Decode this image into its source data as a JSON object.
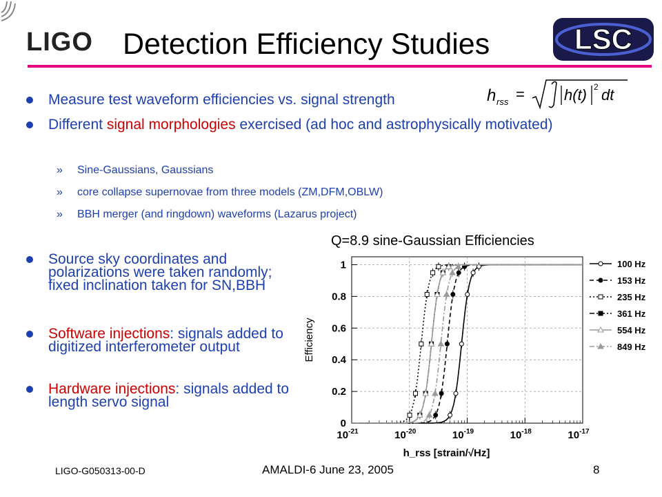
{
  "header": {
    "logo_text": "LIGO",
    "title": "Detection Efficiency Studies",
    "badge_text": "LSC"
  },
  "bullets_top": [
    {
      "text": "Measure test waveform efficiencies vs. signal strength"
    },
    {
      "pre": "Different ",
      "highlight": "signal morphologies",
      "post": " exercised (ad hoc and astrophysically motivated)"
    }
  ],
  "formula": "h_rss = sqrt( ∫ |h(t)|^2 dt )",
  "sub_bullets": [
    "Sine-Gaussians, Gaussians",
    "core collapse supernovae from three models (ZM,DFM,OBLW)",
    "BBH merger (and ringdown) waveforms (Lazarus project)"
  ],
  "bullets_left": [
    {
      "pre": "",
      "highlight": "",
      "post": "Source sky coordinates  and polarizations were taken randomly; fixed inclination taken for SN,BBH"
    },
    {
      "pre": "",
      "highlight": "Software injections",
      "post": ": signals added to digitized interferometer output"
    },
    {
      "pre": "",
      "highlight": "Hardware injections",
      "post": ": signals added to length servo signal"
    }
  ],
  "footer": {
    "doc_id": "LIGO-G050313-00-D",
    "center": "AMALDI-6 June 23, 2005",
    "page": "8"
  },
  "colors": {
    "text_blue": "#1e3fb0",
    "highlight_red": "#cc0000",
    "rule_magenta": "#e6007e",
    "lsc_badge": "#1a1a4a"
  },
  "chart_data": {
    "type": "line",
    "title": "Q=8.9 sine-Gaussian Efficiencies",
    "xlabel": "h_rss [strain/√Hz]",
    "ylabel": "Efficiency",
    "xscale": "log",
    "xlim": [
      1e-21,
      1e-17
    ],
    "ylim": [
      0,
      1.05
    ],
    "x_ticks": [
      "10^-21",
      "10^-20",
      "10^-19",
      "10^-18",
      "10^-17"
    ],
    "y_ticks": [
      "0",
      "0.2",
      "0.4",
      "0.6",
      "0.8",
      "1"
    ],
    "grid": true,
    "legend_position": "right",
    "series": [
      {
        "name": "100 Hz",
        "color": "#000000",
        "dash": "",
        "marker": "open-circle",
        "h50": 8e-20,
        "width": 0.3
      },
      {
        "name": "153 Hz",
        "color": "#000000",
        "dash": "6,4",
        "marker": "filled-circle",
        "h50": 4.5e-20,
        "width": 0.3
      },
      {
        "name": "235 Hz",
        "color": "#000000",
        "dash": "2,3",
        "marker": "open-square",
        "h50": 1.6e-20,
        "width": 0.3
      },
      {
        "name": "361 Hz",
        "color": "#000000",
        "dash": "7,3,2,3",
        "marker": "filled-square",
        "h50": 2.4e-20,
        "width": 0.3
      },
      {
        "name": "554 Hz",
        "color": "#9a9a9a",
        "dash": "",
        "marker": "open-triangle",
        "h50": 2.4e-20,
        "width": 0.3
      },
      {
        "name": "849 Hz",
        "color": "#9a9a9a",
        "dash": "7,3,2,3",
        "marker": "filled-triangle",
        "h50": 3.5e-20,
        "width": 0.3
      }
    ]
  }
}
